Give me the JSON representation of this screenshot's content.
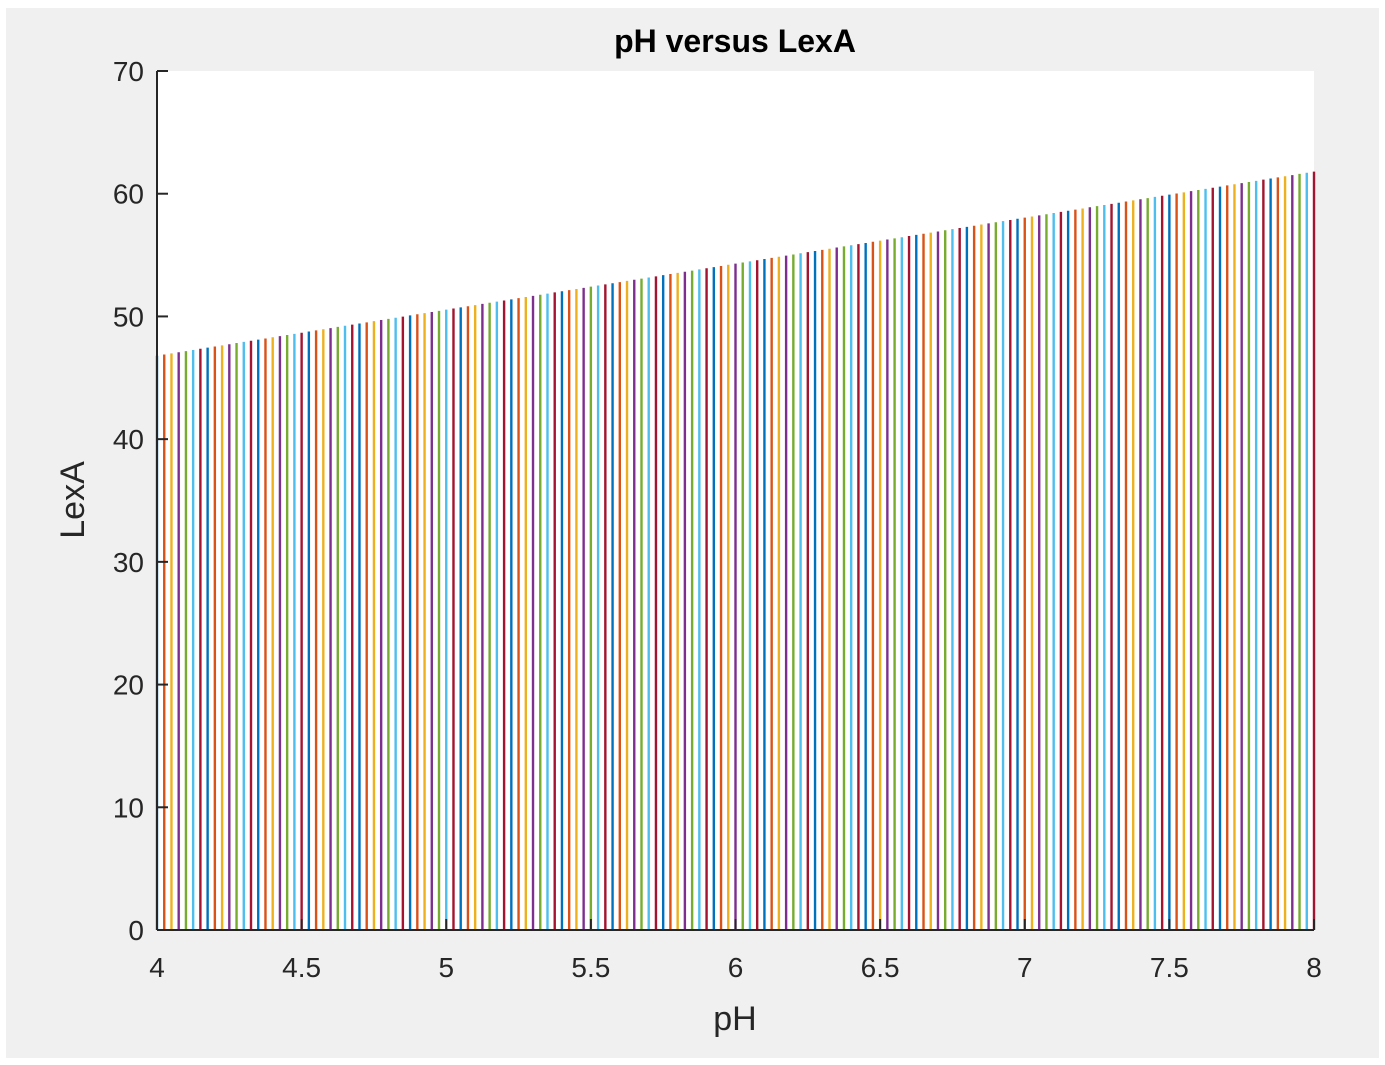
{
  "chart_data": {
    "type": "bar",
    "title": "pH versus LexA",
    "xlabel": "pH",
    "ylabel": "LexA",
    "xlim": [
      4,
      8
    ],
    "ylim": [
      0,
      70
    ],
    "xticks": [
      "4",
      "4.5",
      "5",
      "5.5",
      "6",
      "6.5",
      "7",
      "7.5",
      "8"
    ],
    "yticks": [
      "0",
      "10",
      "20",
      "30",
      "40",
      "50",
      "60",
      "70"
    ],
    "grid": false,
    "x_range": [
      4,
      8
    ],
    "bar_count": 161,
    "value_at_start": 46.8,
    "value_at_end": 61.8,
    "series_colors": [
      "#0072BD",
      "#D95319",
      "#EDB120",
      "#7E2F8E",
      "#77AC30",
      "#4DBEEE",
      "#A2142F"
    ]
  }
}
